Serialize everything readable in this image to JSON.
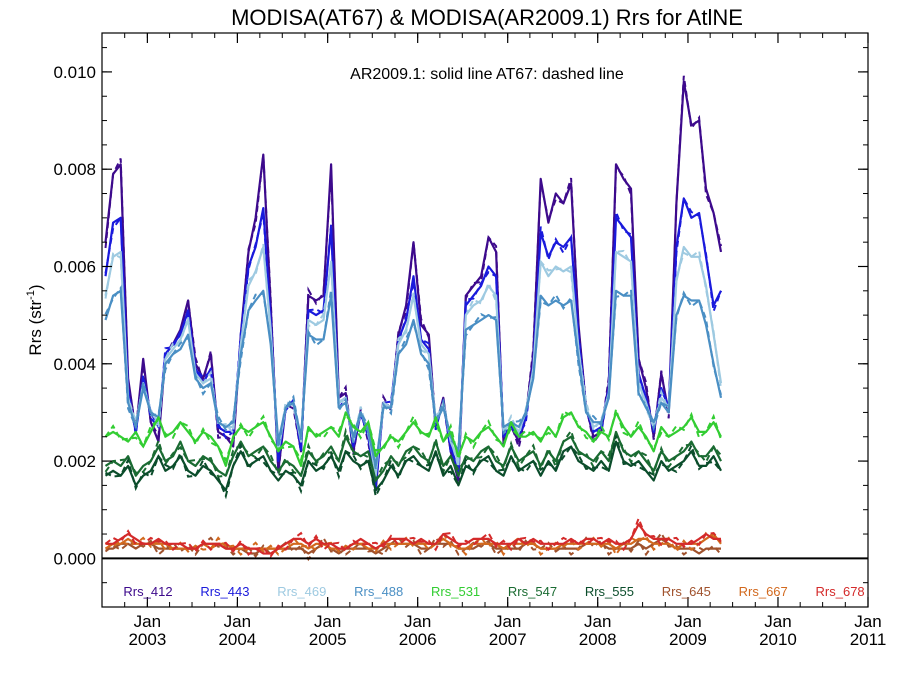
{
  "chart_data": {
    "type": "line",
    "title": "MODISA(AT67) & MODISA(AR2009.1)  Rrs for AtlNE",
    "ylabel": "Rrs (str",
    "ylabel_sup": "-1",
    "ylabel_close": ")",
    "annotation": "AR2009.1: solid line   AT67: dashed line",
    "ylim": [
      -0.001,
      0.0108
    ],
    "xlim": [
      "2002-07-01",
      "2011-01-01"
    ],
    "y_ticks": [
      {
        "value": 0.0,
        "label": "0.000"
      },
      {
        "value": 0.002,
        "label": "0.002"
      },
      {
        "value": 0.004,
        "label": "0.004"
      },
      {
        "value": 0.006,
        "label": "0.006"
      },
      {
        "value": 0.008,
        "label": "0.008"
      },
      {
        "value": 0.01,
        "label": "0.010"
      }
    ],
    "x_ticks": [
      {
        "date": "2003-01-01",
        "month": "Jan",
        "year": "2003"
      },
      {
        "date": "2004-01-01",
        "month": "Jan",
        "year": "2004"
      },
      {
        "date": "2005-01-01",
        "month": "Jan",
        "year": "2005"
      },
      {
        "date": "2006-01-01",
        "month": "Jan",
        "year": "2006"
      },
      {
        "date": "2007-01-01",
        "month": "Jan",
        "year": "2007"
      },
      {
        "date": "2008-01-01",
        "month": "Jan",
        "year": "2008"
      },
      {
        "date": "2009-01-01",
        "month": "Jan",
        "year": "2009"
      },
      {
        "date": "2010-01-01",
        "month": "Jan",
        "year": "2010"
      },
      {
        "date": "2011-01-01",
        "month": "Jan",
        "year": "2011"
      }
    ],
    "series_start": "2002-07",
    "series_interval": "monthly",
    "legend_position": "bottom",
    "series": [
      {
        "name": "Rrs_412",
        "color": "#3d0a8c",
        "values": [
          0.0065,
          0.0079,
          0.0081,
          0.0037,
          0.0026,
          0.0041,
          0.0028,
          0.0024,
          0.0042,
          0.0044,
          0.0047,
          0.0053,
          0.004,
          0.0037,
          0.0042,
          0.0026,
          0.0025,
          0.0023,
          0.0046,
          0.0063,
          0.007,
          0.0083,
          0.0052,
          0.0018,
          0.0031,
          0.0032,
          0.0022,
          0.0054,
          0.0053,
          0.0054,
          0.0081,
          0.0033,
          0.0034,
          0.0022,
          0.003,
          0.0025,
          0.0014,
          0.0032,
          0.0031,
          0.0046,
          0.0052,
          0.0065,
          0.0048,
          0.0046,
          0.0027,
          0.0033,
          0.0022,
          0.0016,
          0.0054,
          0.0056,
          0.0058,
          0.0066,
          0.0063,
          0.0024,
          0.0027,
          0.0024,
          0.0029,
          0.0042,
          0.0078,
          0.0069,
          0.0075,
          0.0073,
          0.0077,
          0.0048,
          0.0031,
          0.0025,
          0.0026,
          0.0036,
          0.0081,
          0.0078,
          0.0076,
          0.0041,
          0.0035,
          0.0025,
          0.0038,
          0.003,
          0.0073,
          0.0098,
          0.0089,
          0.009,
          0.0076,
          0.0071,
          0.0063
        ]
      },
      {
        "name": "Rrs_443",
        "color": "#1a1adc",
        "values": [
          0.0058,
          0.0069,
          0.007,
          0.0034,
          0.0026,
          0.0037,
          0.003,
          0.0027,
          0.0042,
          0.0044,
          0.0046,
          0.0051,
          0.0039,
          0.0036,
          0.0039,
          0.0027,
          0.0026,
          0.0026,
          0.0045,
          0.006,
          0.0064,
          0.0072,
          0.0049,
          0.002,
          0.0031,
          0.0032,
          0.0023,
          0.0051,
          0.005,
          0.0051,
          0.0068,
          0.0032,
          0.0033,
          0.0023,
          0.003,
          0.0025,
          0.0015,
          0.0032,
          0.0031,
          0.0045,
          0.0049,
          0.0058,
          0.0045,
          0.0043,
          0.0027,
          0.0032,
          0.0023,
          0.0018,
          0.0052,
          0.0054,
          0.0056,
          0.006,
          0.0058,
          0.0025,
          0.0027,
          0.0025,
          0.0029,
          0.004,
          0.0067,
          0.0062,
          0.0065,
          0.0064,
          0.0066,
          0.0045,
          0.0031,
          0.0026,
          0.0027,
          0.0035,
          0.007,
          0.0068,
          0.0066,
          0.0038,
          0.0033,
          0.0026,
          0.0035,
          0.0031,
          0.0064,
          0.0074,
          0.007,
          0.0071,
          0.0062,
          0.0052,
          0.0055
        ]
      },
      {
        "name": "Rrs_469",
        "color": "#9ecae1",
        "values": [
          0.0054,
          0.0062,
          0.0063,
          0.0033,
          0.0027,
          0.0036,
          0.003,
          0.0028,
          0.0041,
          0.0043,
          0.0045,
          0.0049,
          0.0038,
          0.0036,
          0.0037,
          0.0028,
          0.0027,
          0.0027,
          0.0044,
          0.0056,
          0.0059,
          0.0064,
          0.0047,
          0.0022,
          0.0031,
          0.0032,
          0.0024,
          0.0049,
          0.0048,
          0.0049,
          0.0061,
          0.0032,
          0.0033,
          0.0024,
          0.003,
          0.0026,
          0.0017,
          0.0032,
          0.0031,
          0.0044,
          0.0047,
          0.0054,
          0.0044,
          0.0042,
          0.0028,
          0.0032,
          0.0024,
          0.002,
          0.005,
          0.0052,
          0.0053,
          0.0056,
          0.0054,
          0.0026,
          0.0028,
          0.0026,
          0.003,
          0.0039,
          0.0061,
          0.0058,
          0.006,
          0.0059,
          0.006,
          0.0043,
          0.0031,
          0.0027,
          0.0028,
          0.0034,
          0.0063,
          0.0062,
          0.0061,
          0.0036,
          0.0032,
          0.0027,
          0.0033,
          0.0031,
          0.0057,
          0.0064,
          0.0062,
          0.0062,
          0.0056,
          0.0046,
          0.0036
        ]
      },
      {
        "name": "Rrs_488",
        "color": "#4a8fc4",
        "values": [
          0.0049,
          0.0054,
          0.0055,
          0.0032,
          0.0027,
          0.0035,
          0.003,
          0.0029,
          0.004,
          0.0042,
          0.0043,
          0.0046,
          0.0037,
          0.0035,
          0.0036,
          0.0028,
          0.0027,
          0.0028,
          0.0042,
          0.0051,
          0.0053,
          0.0055,
          0.0044,
          0.0024,
          0.0031,
          0.0032,
          0.0025,
          0.0046,
          0.0045,
          0.0045,
          0.0054,
          0.0031,
          0.0032,
          0.0025,
          0.003,
          0.0026,
          0.0019,
          0.0031,
          0.0031,
          0.0042,
          0.0044,
          0.0049,
          0.0042,
          0.004,
          0.0028,
          0.0031,
          0.0025,
          0.0022,
          0.0047,
          0.0048,
          0.0049,
          0.005,
          0.0049,
          0.0027,
          0.0028,
          0.0027,
          0.003,
          0.0037,
          0.0054,
          0.0052,
          0.0053,
          0.0052,
          0.0053,
          0.0041,
          0.003,
          0.0028,
          0.0028,
          0.0033,
          0.0055,
          0.0054,
          0.0054,
          0.0034,
          0.0031,
          0.0028,
          0.0032,
          0.003,
          0.005,
          0.0054,
          0.0053,
          0.0053,
          0.0048,
          0.004,
          0.0033
        ]
      },
      {
        "name": "Rrs_531",
        "color": "#32cd32",
        "values": [
          0.0025,
          0.0026,
          0.0025,
          0.0024,
          0.0026,
          0.0023,
          0.0026,
          0.0029,
          0.0025,
          0.0026,
          0.0028,
          0.0026,
          0.0024,
          0.0026,
          0.0025,
          0.0023,
          0.0019,
          0.0025,
          0.0027,
          0.0026,
          0.0027,
          0.0028,
          0.0025,
          0.0022,
          0.0024,
          0.0023,
          0.0019,
          0.0027,
          0.0025,
          0.0026,
          0.0027,
          0.0025,
          0.003,
          0.0027,
          0.0026,
          0.0028,
          0.0021,
          0.0023,
          0.0025,
          0.0024,
          0.0026,
          0.0028,
          0.0026,
          0.0025,
          0.0029,
          0.0024,
          0.0026,
          0.0021,
          0.0025,
          0.0024,
          0.0026,
          0.0027,
          0.0025,
          0.0023,
          0.0028,
          0.0025,
          0.0025,
          0.0026,
          0.0024,
          0.0027,
          0.0025,
          0.0029,
          0.003,
          0.0027,
          0.0026,
          0.0024,
          0.0026,
          0.0025,
          0.003,
          0.0027,
          0.0025,
          0.0027,
          0.0025,
          0.0022,
          0.0027,
          0.0025,
          0.0026,
          0.0027,
          0.0029,
          0.0026,
          0.0026,
          0.0028,
          0.0025
        ]
      },
      {
        "name": "Rrs_547",
        "color": "#1a6b32",
        "values": [
          0.0019,
          0.002,
          0.0019,
          0.0021,
          0.0017,
          0.0019,
          0.002,
          0.0023,
          0.002,
          0.0021,
          0.0024,
          0.002,
          0.0019,
          0.0021,
          0.002,
          0.0018,
          0.0017,
          0.0021,
          0.0024,
          0.0021,
          0.0022,
          0.0023,
          0.002,
          0.0018,
          0.002,
          0.0019,
          0.0017,
          0.0022,
          0.002,
          0.0021,
          0.0023,
          0.002,
          0.0025,
          0.0022,
          0.0021,
          0.0022,
          0.0016,
          0.0018,
          0.0021,
          0.0019,
          0.0022,
          0.0023,
          0.0021,
          0.002,
          0.0024,
          0.0019,
          0.0021,
          0.0017,
          0.0021,
          0.002,
          0.0022,
          0.0023,
          0.002,
          0.0019,
          0.0023,
          0.002,
          0.0021,
          0.0022,
          0.0019,
          0.0022,
          0.002,
          0.0024,
          0.0025,
          0.0022,
          0.0021,
          0.002,
          0.0022,
          0.002,
          0.0026,
          0.0022,
          0.0021,
          0.0022,
          0.002,
          0.0018,
          0.0022,
          0.002,
          0.0021,
          0.0022,
          0.0024,
          0.0021,
          0.0021,
          0.0023,
          0.002
        ]
      },
      {
        "name": "Rrs_555",
        "color": "#0b4d2b",
        "values": [
          0.0017,
          0.0018,
          0.0017,
          0.0019,
          0.0015,
          0.0017,
          0.0018,
          0.0021,
          0.0018,
          0.0019,
          0.0021,
          0.0018,
          0.0017,
          0.0019,
          0.0018,
          0.0016,
          0.0014,
          0.0019,
          0.0022,
          0.0019,
          0.002,
          0.0021,
          0.0018,
          0.0016,
          0.0018,
          0.0017,
          0.0015,
          0.002,
          0.0018,
          0.0019,
          0.0021,
          0.0018,
          0.0022,
          0.002,
          0.0019,
          0.002,
          0.0014,
          0.0016,
          0.0019,
          0.0017,
          0.002,
          0.0021,
          0.0019,
          0.0018,
          0.0022,
          0.0017,
          0.0019,
          0.0015,
          0.0019,
          0.0018,
          0.002,
          0.0021,
          0.0018,
          0.0017,
          0.0021,
          0.0018,
          0.0019,
          0.002,
          0.0017,
          0.002,
          0.0018,
          0.0022,
          0.0023,
          0.002,
          0.0019,
          0.0018,
          0.002,
          0.0018,
          0.0024,
          0.002,
          0.0019,
          0.002,
          0.0018,
          0.0016,
          0.002,
          0.0018,
          0.0019,
          0.002,
          0.0022,
          0.0019,
          0.0019,
          0.0021,
          0.0018
        ]
      },
      {
        "name": "Rrs_645",
        "color": "#a0522d",
        "values": [
          0.0002,
          0.0002,
          0.0003,
          0.0003,
          0.0002,
          0.0003,
          0.0003,
          0.0002,
          0.0002,
          0.0002,
          0.0002,
          0.0002,
          0.0002,
          0.0003,
          0.0003,
          0.0003,
          0.0002,
          0.0002,
          0.0002,
          0.0001,
          0.0001,
          0.0002,
          0.0002,
          0.0002,
          0.0002,
          0.0002,
          0.0002,
          0.0001,
          0.0002,
          0.0003,
          0.0002,
          0.0001,
          0.0002,
          0.0002,
          0.0002,
          0.0002,
          0.0001,
          0.0002,
          0.0003,
          0.0003,
          0.0003,
          0.0003,
          0.0002,
          0.0002,
          0.0003,
          0.0003,
          0.0003,
          0.0002,
          0.0002,
          0.0002,
          0.0003,
          0.0003,
          0.0002,
          0.0002,
          0.0002,
          0.0002,
          0.0003,
          0.0003,
          0.0002,
          0.0002,
          0.0002,
          0.0002,
          0.0002,
          0.0002,
          0.0003,
          0.0003,
          0.0003,
          0.0002,
          0.0002,
          0.0002,
          0.0002,
          0.0003,
          0.0002,
          0.0003,
          0.0004,
          0.0003,
          0.0002,
          0.0002,
          0.0002,
          0.0001,
          0.0002,
          0.0002,
          0.0002
        ]
      },
      {
        "name": "Rrs_667",
        "color": "#d2691e",
        "values": [
          0.0002,
          0.0003,
          0.0003,
          0.0004,
          0.0003,
          0.0003,
          0.0003,
          0.0003,
          0.0003,
          0.0002,
          0.0002,
          0.0002,
          0.0002,
          0.0003,
          0.0002,
          0.0003,
          0.0003,
          0.0002,
          0.0002,
          0.0002,
          0.0002,
          0.0002,
          0.0002,
          0.0002,
          0.0002,
          0.0003,
          0.0003,
          0.0002,
          0.0003,
          0.0003,
          0.0002,
          0.0002,
          0.0002,
          0.0003,
          0.0003,
          0.0002,
          0.0002,
          0.0003,
          0.0003,
          0.0003,
          0.0003,
          0.0003,
          0.0003,
          0.0003,
          0.0003,
          0.0004,
          0.0003,
          0.0002,
          0.0002,
          0.0003,
          0.0003,
          0.0003,
          0.0003,
          0.0002,
          0.0003,
          0.0003,
          0.0003,
          0.0003,
          0.0002,
          0.0002,
          0.0002,
          0.0003,
          0.0003,
          0.0003,
          0.0003,
          0.0003,
          0.0003,
          0.0003,
          0.0002,
          0.0003,
          0.0003,
          0.0004,
          0.0004,
          0.0003,
          0.0003,
          0.0003,
          0.0002,
          0.0003,
          0.0003,
          0.0003,
          0.0004,
          0.0005,
          0.0003
        ]
      },
      {
        "name": "Rrs_678",
        "color": "#d42a2a",
        "values": [
          0.0003,
          0.0003,
          0.0004,
          0.0005,
          0.0004,
          0.0003,
          0.0003,
          0.0004,
          0.0003,
          0.0003,
          0.0003,
          0.0002,
          0.0002,
          0.0003,
          0.0003,
          0.0003,
          0.0002,
          0.0002,
          0.0003,
          0.0002,
          0.0002,
          0.0001,
          0.0001,
          0.0002,
          0.0003,
          0.0004,
          0.0004,
          0.0003,
          0.0004,
          0.0003,
          0.0003,
          0.0002,
          0.0002,
          0.0003,
          0.0004,
          0.0003,
          0.0002,
          0.0003,
          0.0004,
          0.0004,
          0.0004,
          0.0003,
          0.0004,
          0.0003,
          0.0003,
          0.0005,
          0.0004,
          0.0003,
          0.0003,
          0.0004,
          0.0004,
          0.0004,
          0.0003,
          0.0003,
          0.0003,
          0.0004,
          0.0003,
          0.0004,
          0.0003,
          0.0003,
          0.0003,
          0.0003,
          0.0004,
          0.0003,
          0.0004,
          0.0004,
          0.0003,
          0.0004,
          0.0003,
          0.0003,
          0.0004,
          0.0007,
          0.0005,
          0.0004,
          0.0004,
          0.0004,
          0.0003,
          0.0003,
          0.0003,
          0.0004,
          0.0005,
          0.0004,
          0.0004
        ]
      }
    ]
  }
}
